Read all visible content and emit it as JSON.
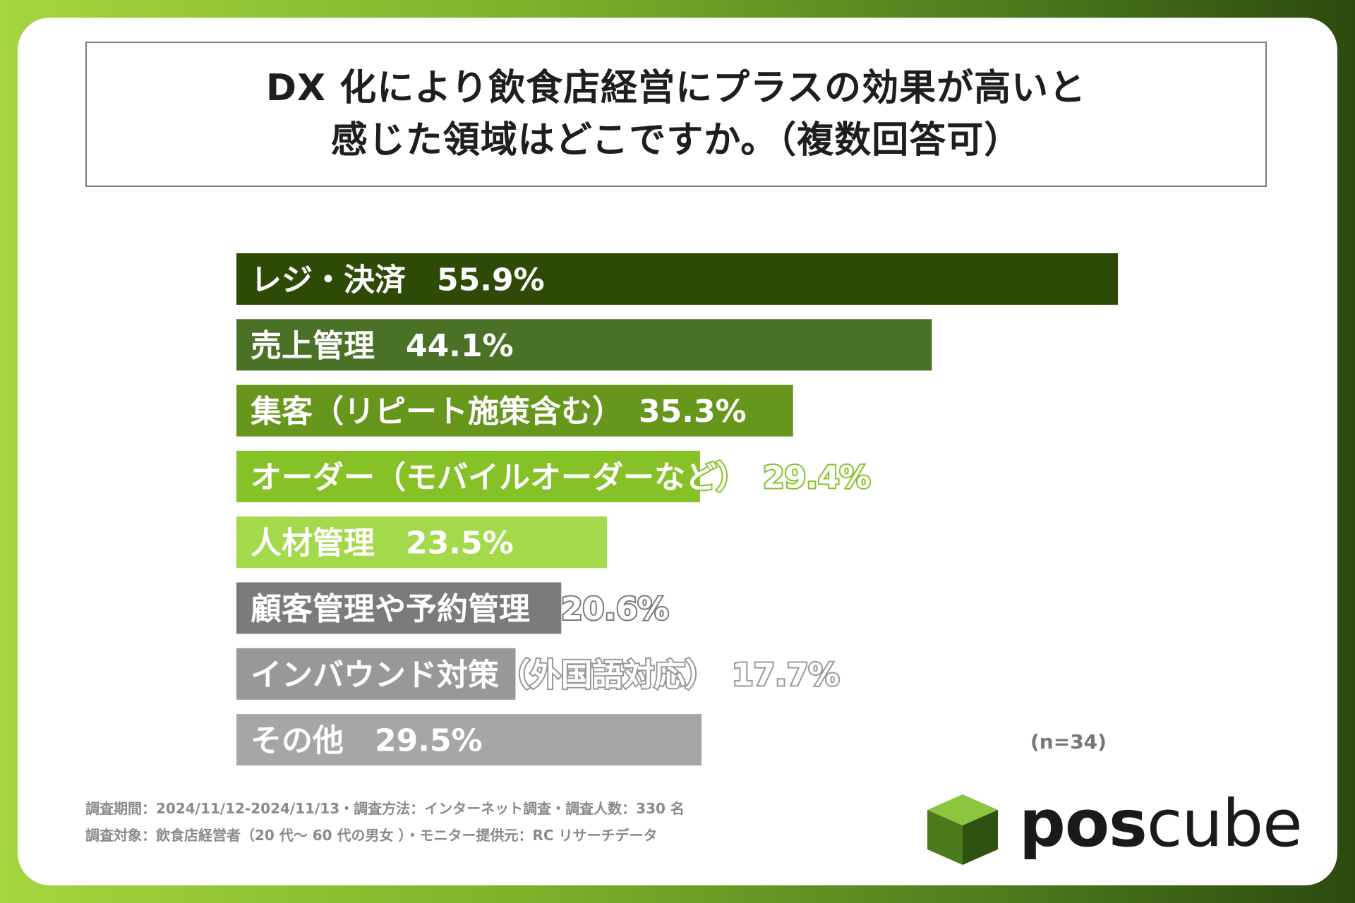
{
  "title": {
    "line1": "DX 化により飲食店経営にプラスの効果が高いと",
    "line2": "感じた領域はどこですか。（複数回答可）"
  },
  "chart_data": {
    "type": "bar",
    "orientation": "horizontal",
    "title": "DX 化により飲食店経営にプラスの効果が高いと感じた領域はどこですか。（複数回答可）",
    "categories": [
      "レジ・決済",
      "売上管理",
      "集客（リピート施策含む）",
      "オーダー（モバイルオーダーなど）",
      "人材管理",
      "顧客管理や予約管理",
      "インバウンド対策（外国語対応）",
      "その他"
    ],
    "values": [
      55.9,
      44.1,
      35.3,
      29.4,
      23.5,
      20.6,
      17.7,
      29.5
    ],
    "value_labels": [
      "55.9%",
      "44.1%",
      "35.3%",
      "29.4%",
      "23.5%",
      "20.6%",
      "17.7%",
      "29.5%"
    ],
    "colors": [
      "#2d4a07",
      "#4a7226",
      "#67961d",
      "#86c128",
      "#a3d94a",
      "#7b7b7b",
      "#989898",
      "#a6a6a6"
    ],
    "xlim": [
      0,
      100
    ],
    "unit": "%",
    "sample_note": "(n=34)"
  },
  "footnotes": {
    "line1": "調査期間：2024/11/12-2024/11/13・調査方法：インターネット調査・調査人数：330 名",
    "line2": "調査対象：飲食店経営者（20 代～ 60 代の男女 ）・モニター提供元：RC リサーチデータ"
  },
  "logo": {
    "text_bold": "pos",
    "text_light": "cube",
    "cube_colors": {
      "top": "#8cc63f",
      "left": "#4c7a1c",
      "right": "#2e5210"
    }
  }
}
